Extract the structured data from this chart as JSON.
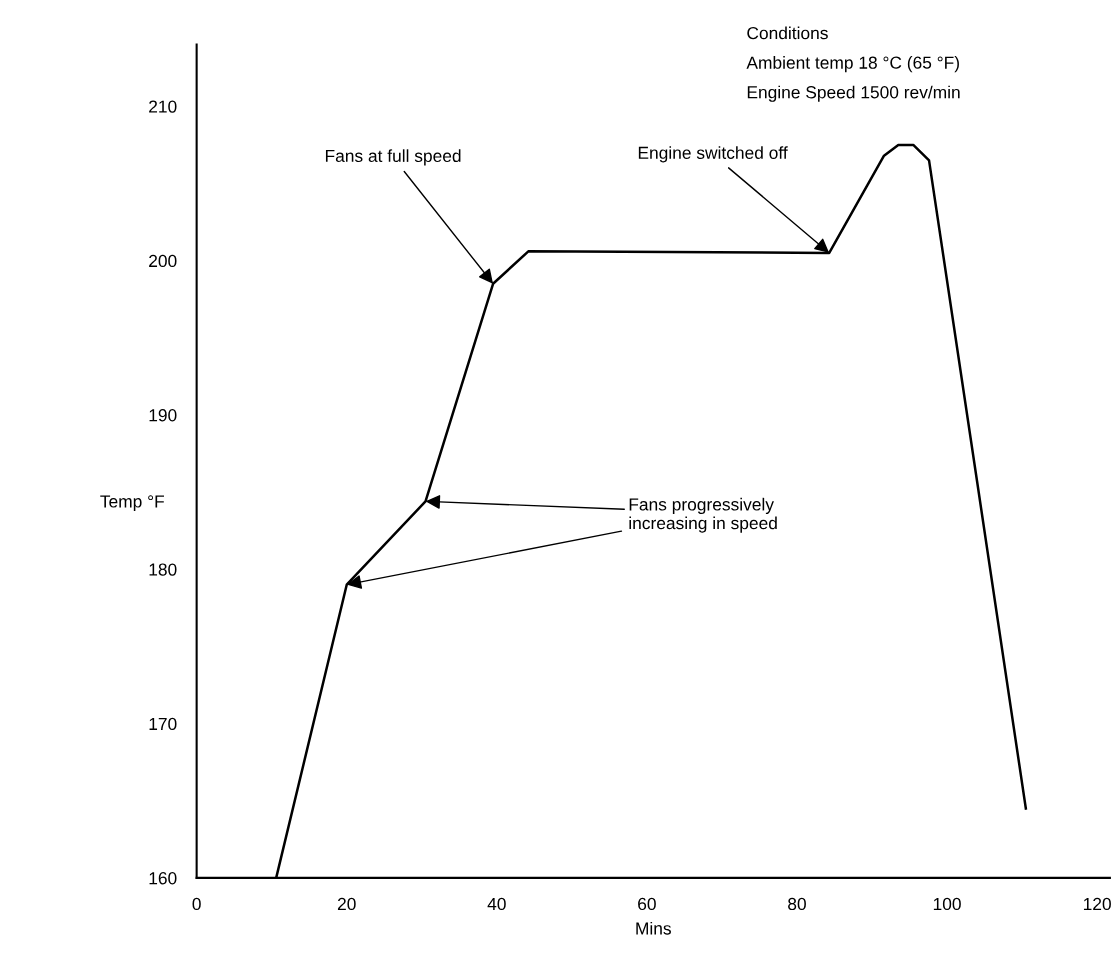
{
  "chart_data": {
    "type": "line",
    "xlabel": "Mins",
    "ylabel": "Temp °F",
    "x": [
      10.6,
      20,
      30.5,
      39.5,
      44.2,
      84.3,
      91.6,
      93.5,
      95.5,
      97.6,
      104,
      110.5
    ],
    "series": [
      {
        "color": "#000000",
        "values": [
          160,
          179,
          184.4,
          198.5,
          200.6,
          200.5,
          206.8,
          207.5,
          207.5,
          206.5,
          185.7,
          164.5
        ]
      }
    ],
    "xlim": [
      0,
      121.7
    ],
    "ylim": [
      160,
      214
    ],
    "xticks": [
      0,
      20,
      40,
      60,
      80,
      100,
      120
    ],
    "yticks": [
      160,
      170,
      180,
      190,
      200,
      210
    ],
    "grid": false,
    "marker": "none",
    "line_style": "solid",
    "annotations": [
      "Conditions",
      "Ambient temp 18 °C (65 °F)",
      "Engine Speed 1500 rev/min",
      {
        "text": "Fans at full speed",
        "x": 39.5,
        "y": 198.5
      },
      {
        "text": "Engine switched off",
        "x": 84.3,
        "y": 200.5
      },
      {
        "text": "Fans progressively\nincreasing in speed",
        "x": 30.5,
        "y": 184.4
      }
    ]
  }
}
